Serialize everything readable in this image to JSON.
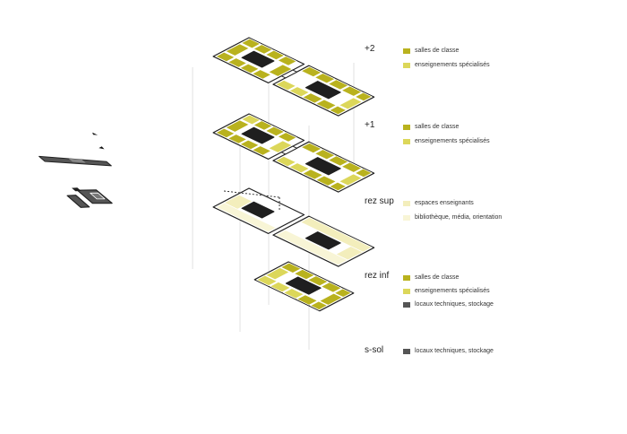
{
  "colors": {
    "olive": "#b9b21e",
    "lightOlive": "#dcd75a",
    "paleYellow": "#f3eebc",
    "dark": "#1f1f1f",
    "grey": "#555555",
    "outline": "#222222",
    "leader": "#cccccc"
  },
  "levels": [
    {
      "id": "plus2",
      "label": "+2",
      "legend": [
        {
          "text": "salles de classe",
          "color": "#b9b21e"
        },
        {
          "text": "enseignements spécialisés",
          "color": "#dcd75a"
        }
      ]
    },
    {
      "id": "plus1",
      "label": "+1",
      "legend": [
        {
          "text": "salles de classe",
          "color": "#b9b21e"
        },
        {
          "text": "enseignements spécialisés",
          "color": "#dcd75a"
        }
      ]
    },
    {
      "id": "rezsup",
      "label": "rez sup",
      "legend": [
        {
          "text": "espaces enseignants",
          "color": "#f3eebc"
        },
        {
          "text": "bibliothèque, média, orientation",
          "color": "#f8f5d6"
        }
      ]
    },
    {
      "id": "rezinf",
      "label": "rez inf",
      "legend": [
        {
          "text": "salles de classe",
          "color": "#b9b21e"
        },
        {
          "text": "enseignements spécialisés",
          "color": "#dcd75a"
        },
        {
          "text": "locaux techniques, stockage",
          "color": "#555555"
        }
      ]
    },
    {
      "id": "ssol",
      "label": "s-sol",
      "legend": [
        {
          "text": "locaux techniques, stockage",
          "color": "#555555"
        }
      ]
    }
  ]
}
